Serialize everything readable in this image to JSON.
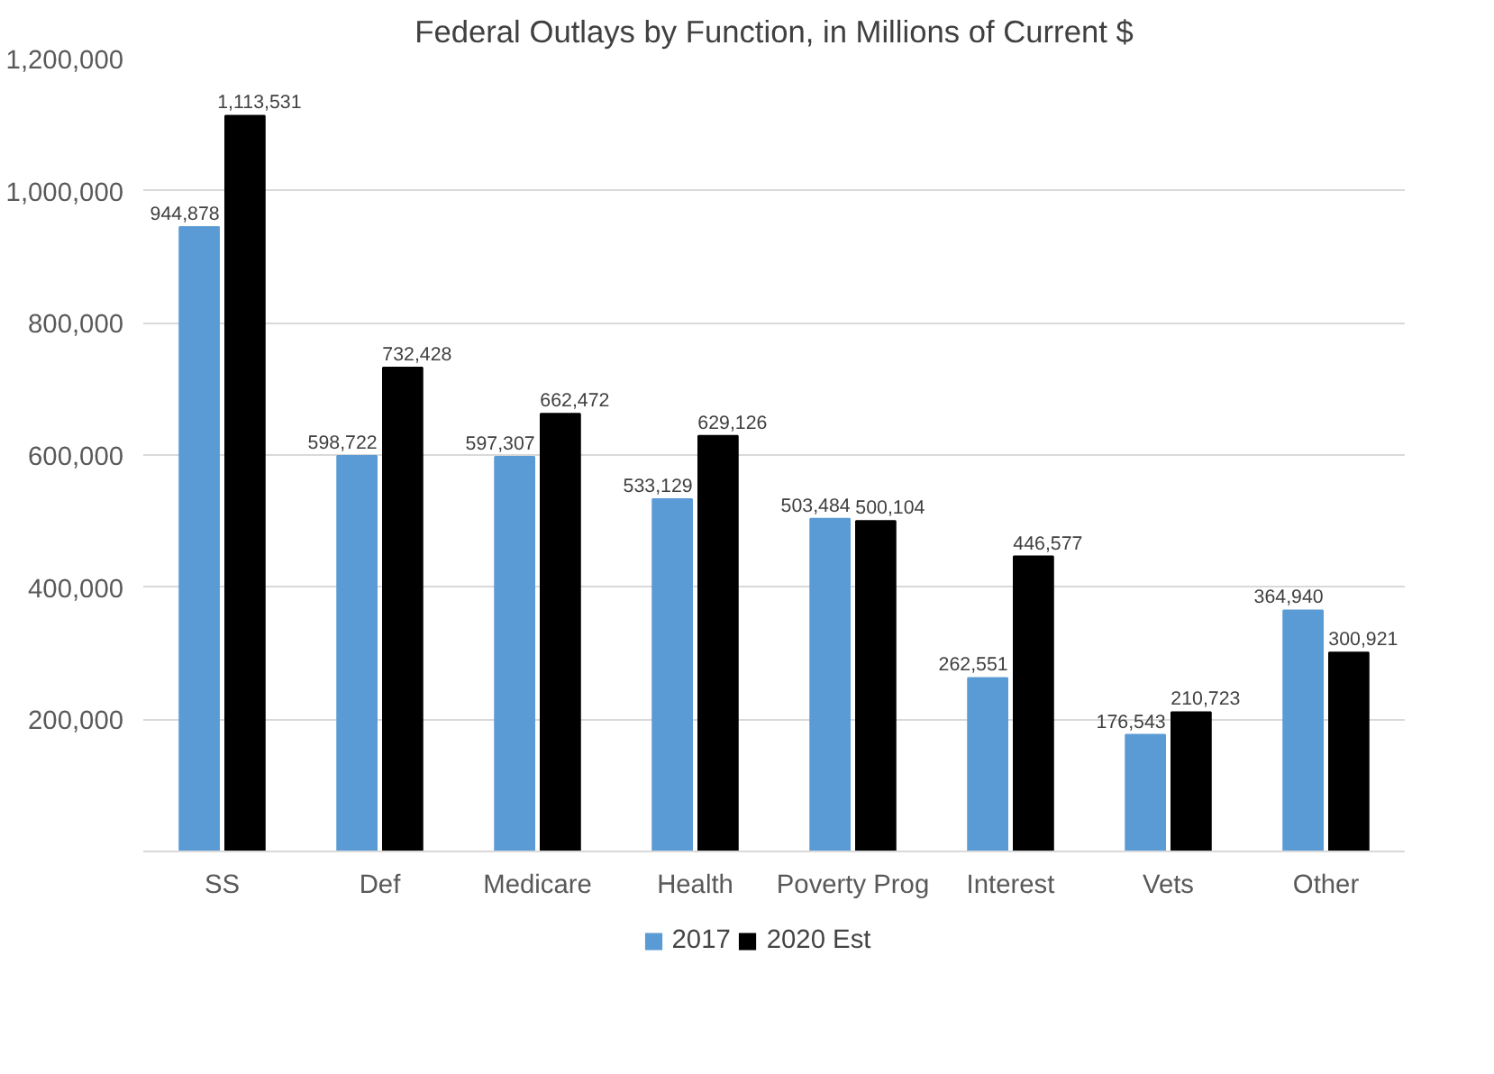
{
  "chart_data": {
    "type": "bar",
    "title": "Federal Outlays by Function, in Millions of Current $",
    "categories": [
      "SS",
      "Def",
      "Medicare",
      "Health",
      "Poverty Prog",
      "Interest",
      "Vets",
      "Other"
    ],
    "series": [
      {
        "name": "2017",
        "color": "#5b9bd5",
        "values": [
          944878,
          598722,
          597307,
          533129,
          503484,
          262551,
          176543,
          364940
        ],
        "value_labels": [
          "944,878",
          "598,722",
          "597,307",
          "533,129",
          "503,484",
          "262,551",
          "176,543",
          "364,940"
        ]
      },
      {
        "name": "2020 Est",
        "color": "#000000",
        "values": [
          1113531,
          732428,
          662472,
          629126,
          500104,
          446577,
          210723,
          300921
        ],
        "value_labels": [
          "1,113,531",
          "732,428",
          "662,472",
          "629,126",
          "500,104",
          "446,577",
          "210,723",
          "300,921"
        ]
      }
    ],
    "ylim": [
      0,
      1200000
    ],
    "yticks": [
      {
        "value": 200000,
        "label": "200,000"
      },
      {
        "value": 400000,
        "label": "400,000"
      },
      {
        "value": 600000,
        "label": "600,000"
      },
      {
        "value": 800000,
        "label": "800,000"
      },
      {
        "value": 1000000,
        "label": "1,000,000"
      },
      {
        "value": 1200000,
        "label": "1,200,000"
      }
    ],
    "grid": "y",
    "legend": "bottom"
  }
}
